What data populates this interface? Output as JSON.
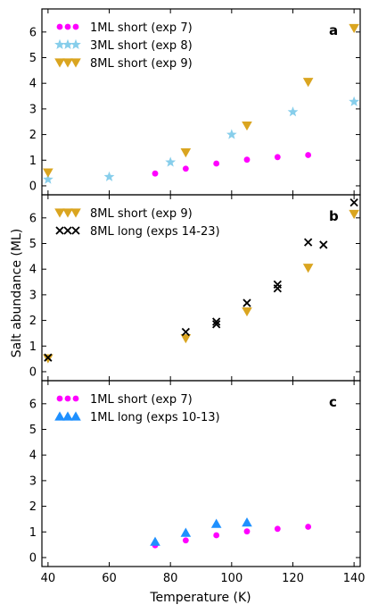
{
  "chart_data": {
    "type": "scatter",
    "xlabel": "Temperature (K)",
    "ylabel": "Salt abundance (ML)",
    "xlim": [
      38,
      142
    ],
    "x_ticks": [
      40,
      60,
      80,
      100,
      120,
      140
    ],
    "panels": [
      {
        "letter": "a",
        "ylim": [
          -0.35,
          6.9
        ],
        "y_ticks": [
          0,
          1,
          2,
          3,
          4,
          5,
          6
        ],
        "series": [
          {
            "name": "1ML short (exp 7)",
            "marker": "circle",
            "color": "#ff00ff",
            "x": [
              75,
              85,
              95,
              105,
              115,
              125
            ],
            "y": [
              0.48,
              0.67,
              0.87,
              1.02,
              1.12,
              1.2
            ]
          },
          {
            "name": "3ML short (exp 8)",
            "marker": "star",
            "color": "#87ceeb",
            "x": [
              40,
              60,
              80,
              100,
              120,
              140
            ],
            "y": [
              0.25,
              0.35,
              0.92,
              2.0,
              2.88,
              3.28
            ]
          },
          {
            "name": "8ML short (exp 9)",
            "marker": "triangle-down",
            "color": "#daa520",
            "x": [
              40,
              85,
              105,
              125,
              140
            ],
            "y": [
              0.52,
              1.3,
              2.35,
              4.05,
              6.15
            ]
          }
        ]
      },
      {
        "letter": "b",
        "ylim": [
          -0.35,
          6.9
        ],
        "y_ticks": [
          0,
          1,
          2,
          3,
          4,
          5,
          6
        ],
        "series": [
          {
            "name": "8ML short (exp 9)",
            "marker": "triangle-down",
            "color": "#daa520",
            "x": [
              40,
              85,
              105,
              125,
              140
            ],
            "y": [
              0.52,
              1.3,
              2.35,
              4.05,
              6.15
            ]
          },
          {
            "name": "8ML long (exps 14-23)",
            "marker": "x",
            "color": "#000000",
            "x": [
              40,
              85,
              95,
              95,
              105,
              115,
              115,
              125,
              130,
              140
            ],
            "y": [
              0.55,
              1.55,
              1.85,
              1.95,
              2.68,
              3.25,
              3.4,
              5.05,
              4.95,
              6.6
            ]
          }
        ]
      },
      {
        "letter": "c",
        "ylim": [
          -0.35,
          6.9
        ],
        "y_ticks": [
          0,
          1,
          2,
          3,
          4,
          5,
          6
        ],
        "series": [
          {
            "name": "1ML short (exp 7)",
            "marker": "circle",
            "color": "#ff00ff",
            "x": [
              75,
              85,
              95,
              105,
              115,
              125
            ],
            "y": [
              0.48,
              0.67,
              0.87,
              1.02,
              1.12,
              1.2
            ]
          },
          {
            "name": "1ML long (exps 10-13)",
            "marker": "triangle-up",
            "color": "#1e90ff",
            "x": [
              75,
              85,
              95,
              105
            ],
            "y": [
              0.62,
              0.97,
              1.32,
              1.37
            ]
          }
        ]
      }
    ]
  }
}
